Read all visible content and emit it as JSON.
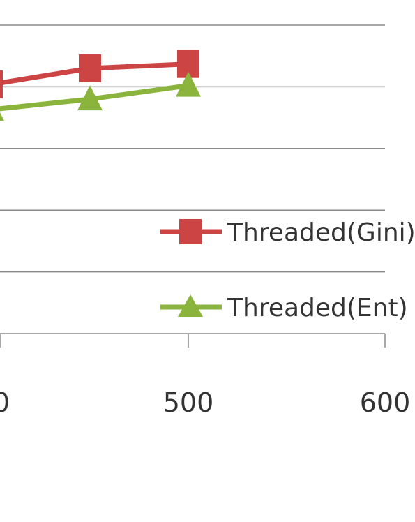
{
  "chart_data": {
    "type": "line",
    "title": "",
    "xlabel": "",
    "ylabel": "",
    "x_ticks": [
      "0",
      "500",
      "600"
    ],
    "x_range": [
      400,
      600
    ],
    "y_range": [
      0,
      5
    ],
    "grid": true,
    "legend_position": "right",
    "series": [
      {
        "name": "Threaded(Gini)",
        "color": "#cc4444",
        "marker": "square",
        "points": [
          [
            400,
            4.04
          ],
          [
            450,
            4.3
          ],
          [
            500,
            4.37
          ]
        ]
      },
      {
        "name": "Threaded(Ent)",
        "color": "#8ab43c",
        "marker": "triangle",
        "points": [
          [
            400,
            3.63
          ],
          [
            450,
            3.8
          ],
          [
            500,
            4.02
          ]
        ]
      }
    ]
  }
}
